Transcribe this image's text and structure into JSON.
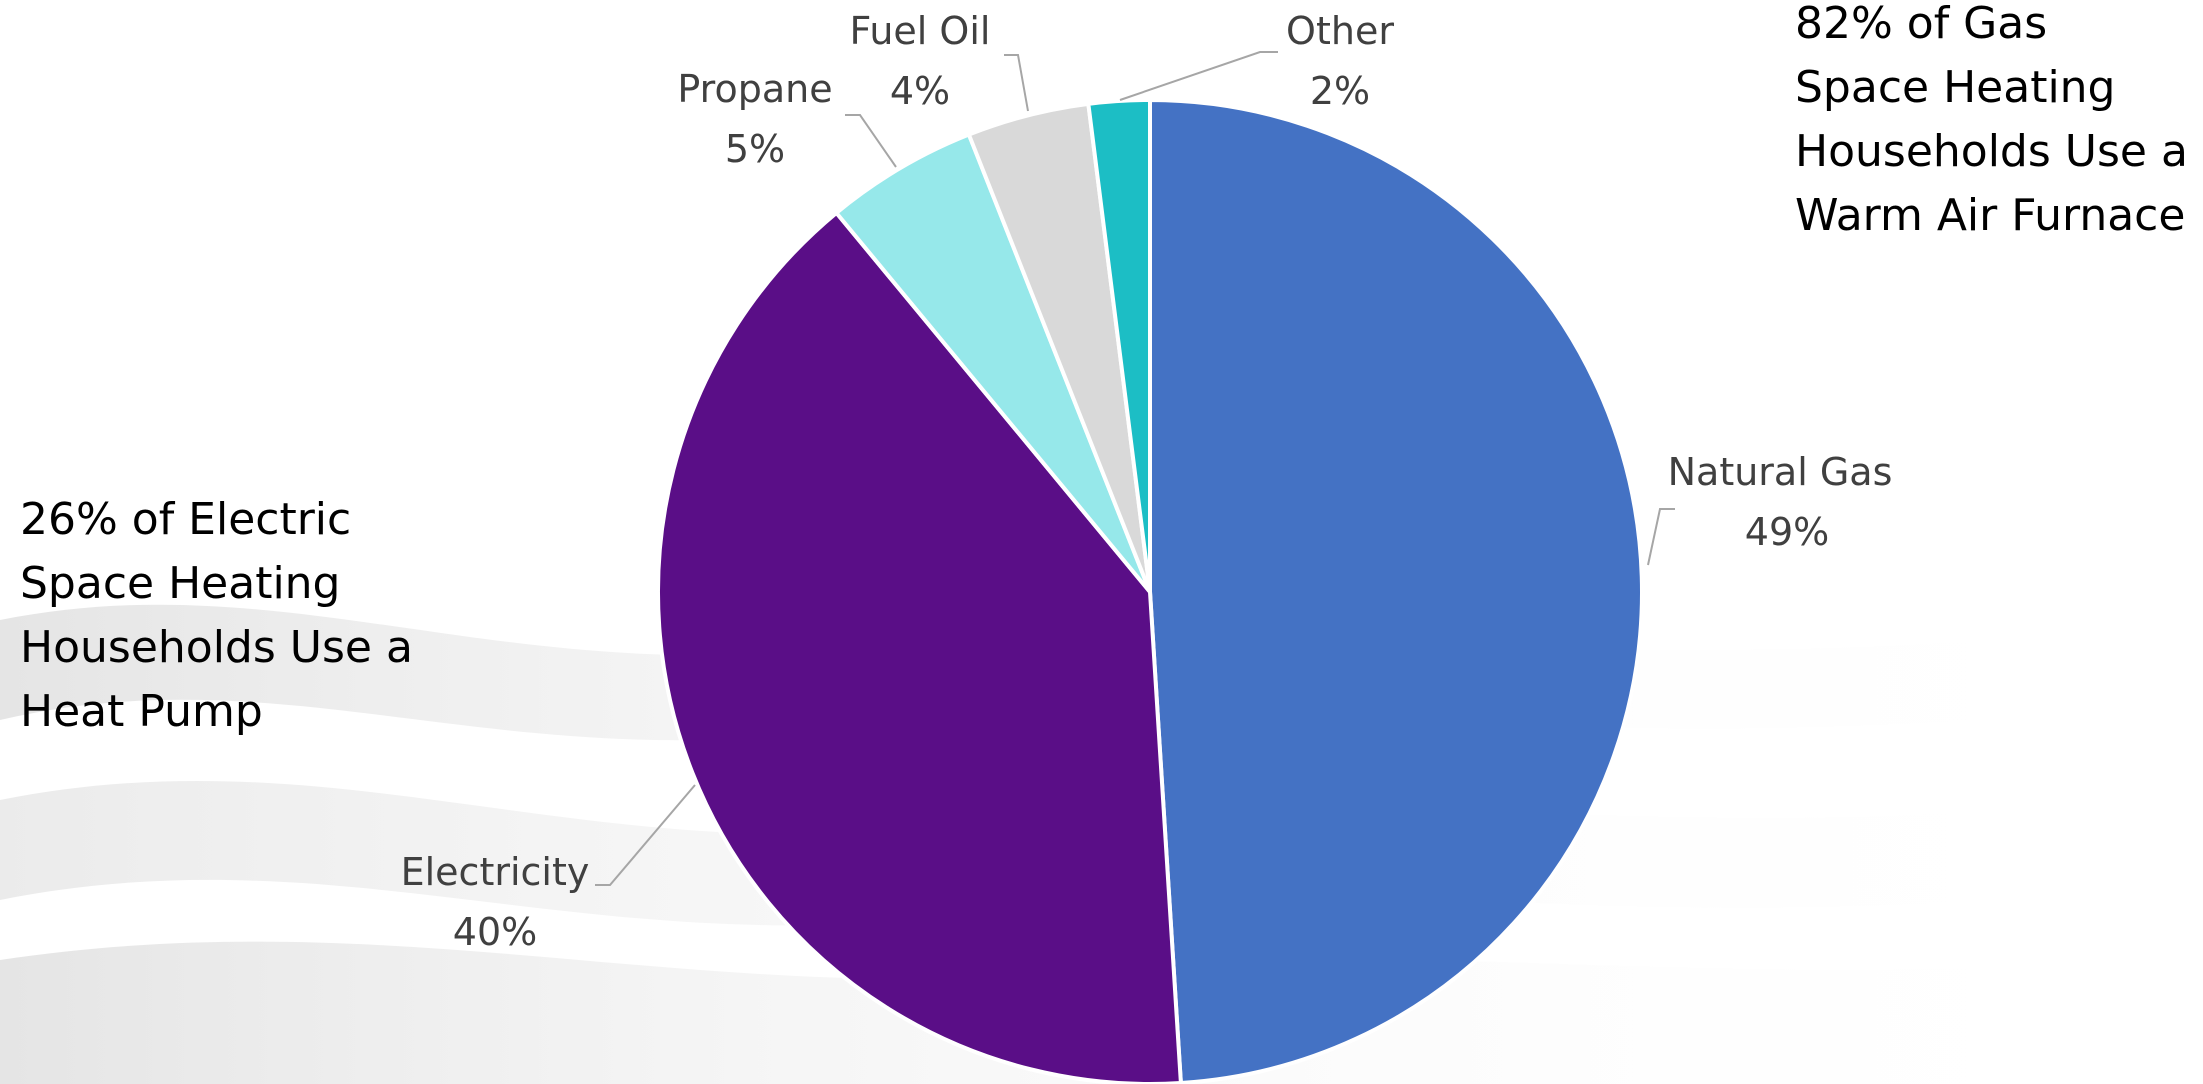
{
  "chart_data": {
    "type": "pie",
    "title": "",
    "categories": [
      "Natural Gas",
      "Electricity",
      "Propane",
      "Fuel Oil",
      "Other"
    ],
    "values": [
      49,
      40,
      5,
      4,
      2
    ],
    "value_labels": [
      "49%",
      "40%",
      "5%",
      "4%",
      "2%"
    ],
    "colors": [
      "#4472C4",
      "#5A0E87",
      "#96E8EA",
      "#D9D9D9",
      "#1CBEC5"
    ],
    "start_angle": "12 o'clock",
    "direction": "clockwise",
    "legend": "none (category labels placed next to slices with leader lines)"
  },
  "annotations": {
    "gas": "82% of Gas Space Heating Households Use a Warm Air Furnace",
    "electric": "26% of Electric Space Heating Households Use a Heat Pump"
  }
}
